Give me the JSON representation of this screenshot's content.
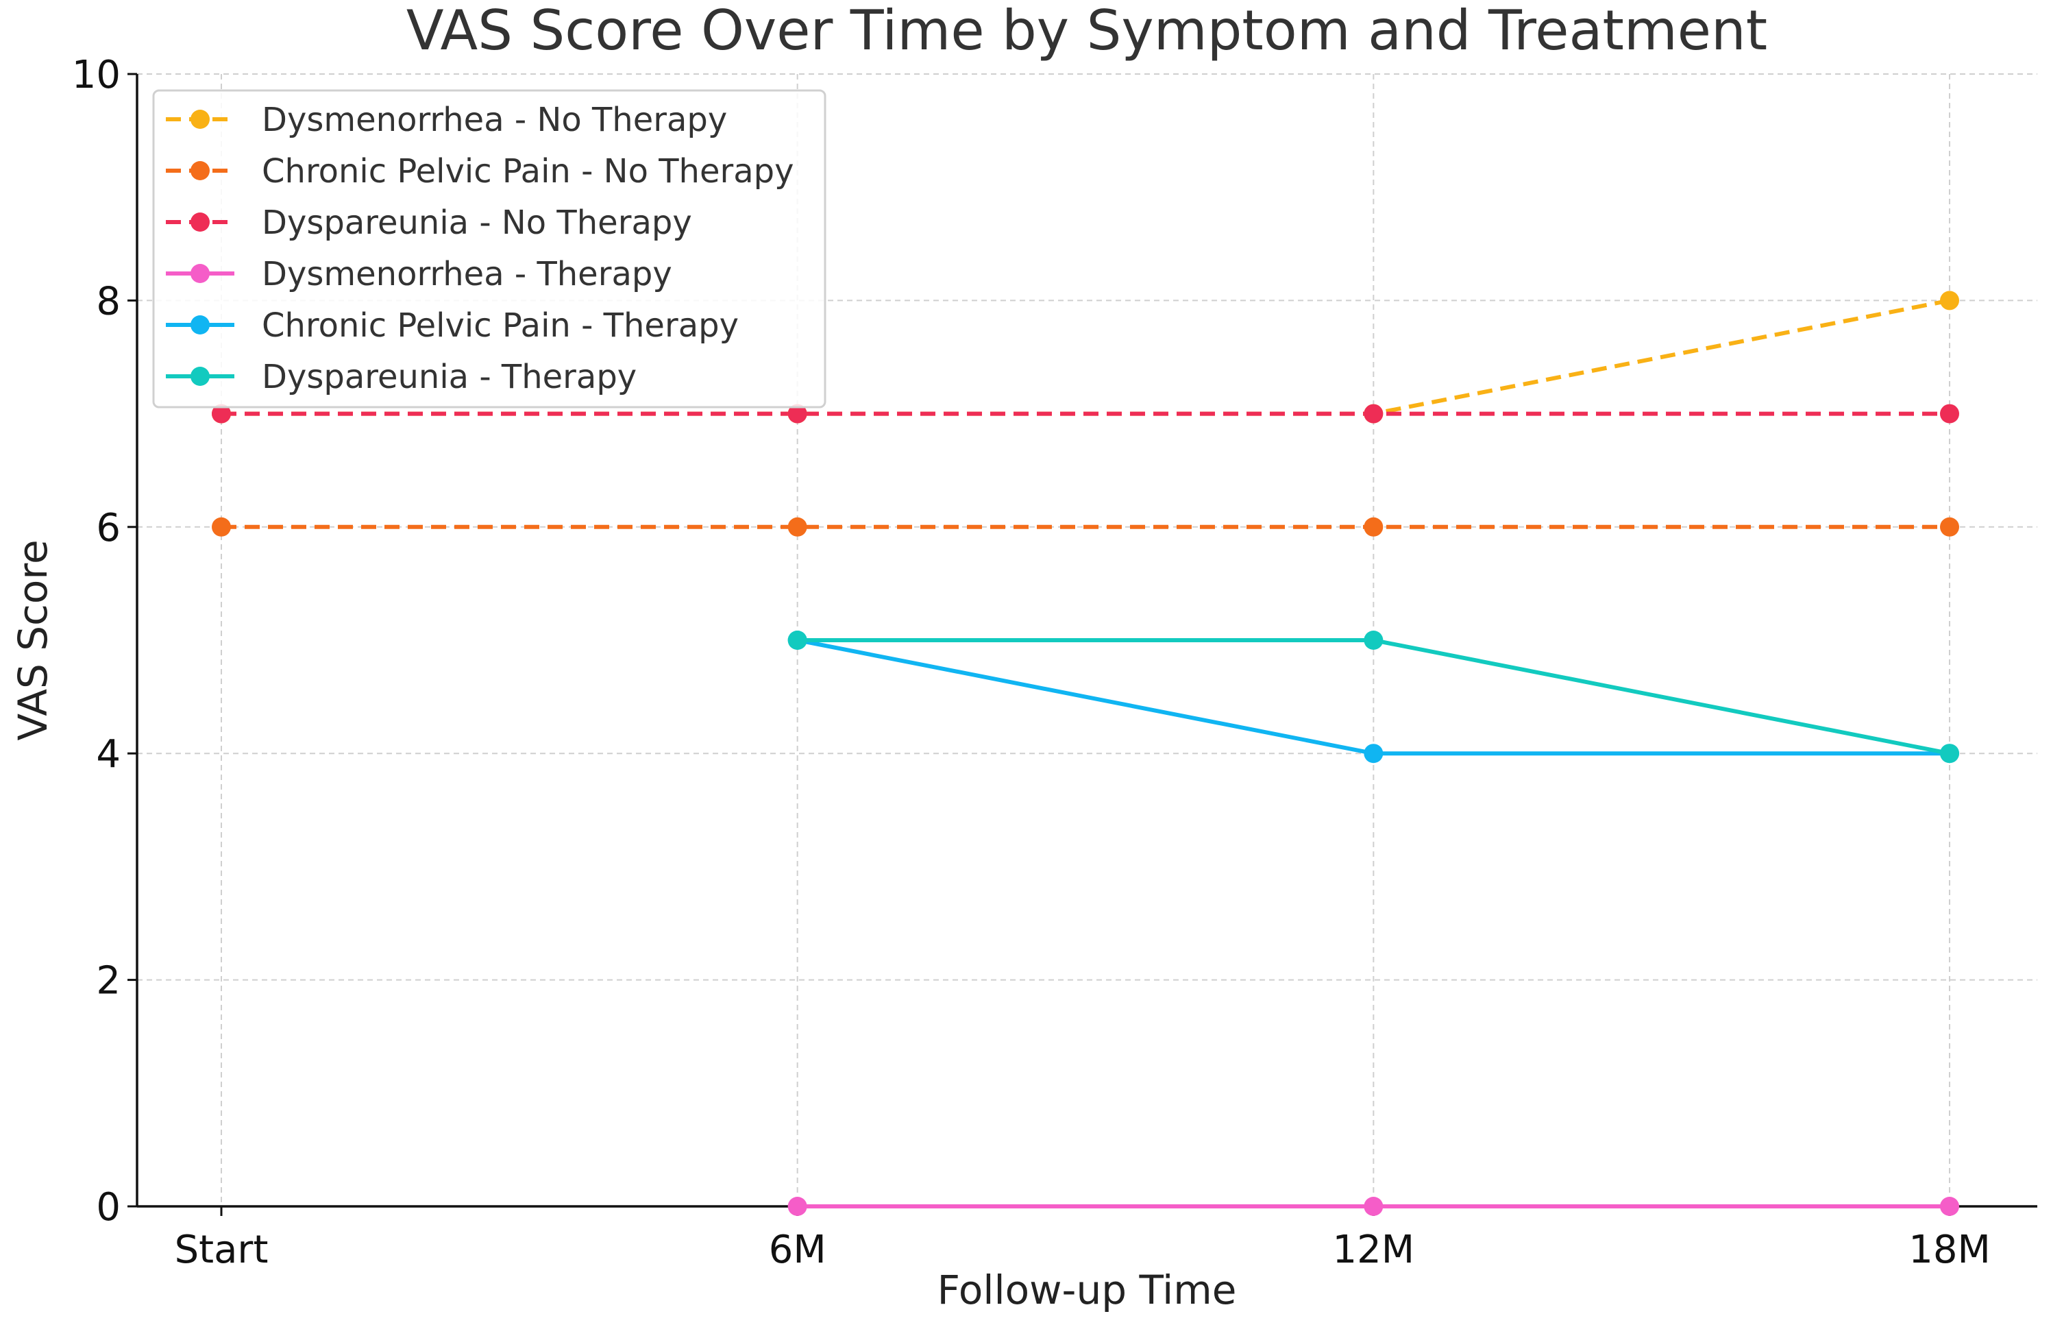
{
  "chart_data": {
    "type": "line",
    "title": "VAS Score Over Time by Symptom and Treatment",
    "xlabel": "Follow-up Time",
    "ylabel": "VAS Score",
    "categories": [
      "Start",
      "6M",
      "12M",
      "18M"
    ],
    "ylim": [
      0,
      10
    ],
    "yticks": [
      0,
      2,
      4,
      6,
      8,
      10
    ],
    "ytick_labels": [
      "0",
      "2",
      "4",
      "6",
      "8",
      "10"
    ],
    "grid": true,
    "legend_position": "top-left",
    "series": [
      {
        "name": "Dysmenorrhea - No Therapy",
        "color": "#F9B115",
        "dashed": true,
        "values": [
          7,
          7,
          7,
          8
        ]
      },
      {
        "name": "Chronic Pelvic Pain - No Therapy",
        "color": "#F46D1A",
        "dashed": true,
        "values": [
          6,
          6,
          6,
          6
        ]
      },
      {
        "name": "Dyspareunia - No Therapy",
        "color": "#EE2D55",
        "dashed": true,
        "values": [
          7,
          7,
          7,
          7
        ]
      },
      {
        "name": "Dysmenorrhea - Therapy",
        "color": "#F55DC8",
        "dashed": false,
        "values": [
          null,
          0,
          0,
          0
        ]
      },
      {
        "name": "Chronic Pelvic Pain - Therapy",
        "color": "#10B5F2",
        "dashed": false,
        "values": [
          null,
          5,
          4,
          4
        ]
      },
      {
        "name": "Dyspareunia - Therapy",
        "color": "#12CABF",
        "dashed": false,
        "values": [
          null,
          5,
          5,
          4
        ]
      }
    ]
  }
}
